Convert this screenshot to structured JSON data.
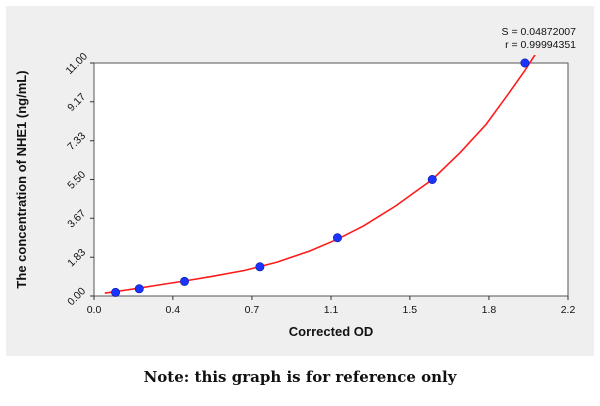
{
  "stats": {
    "s_text": "S = 0.04872007",
    "r_text": "r = 0.99994351"
  },
  "note": "Note: this graph is for reference only",
  "colors": {
    "panel_background": "#efefef",
    "plot_background": "#ffffff",
    "curve": "#ff1a1a",
    "points": "#1a33ff"
  },
  "chart_data": {
    "type": "scatter",
    "title": "",
    "xlabel": "Corrected OD",
    "ylabel": "The concentration of NHE1 (ng/mL)",
    "xlim": [
      0.0,
      2.2
    ],
    "ylim": [
      0.0,
      11.0
    ],
    "x_ticks": [
      "0.0",
      "0.4",
      "0.7",
      "1.1",
      "1.5",
      "1.8",
      "2.2"
    ],
    "x_tick_values": [
      0.0,
      0.366,
      0.733,
      1.1,
      1.466,
      1.833,
      2.2
    ],
    "y_ticks": [
      "0.00",
      "1.83",
      "3.67",
      "5.50",
      "7.33",
      "9.17",
      "11.00"
    ],
    "y_tick_values": [
      0.0,
      1.83,
      3.67,
      5.5,
      7.33,
      9.17,
      11.0
    ],
    "grid": false,
    "legend": "none",
    "points": [
      {
        "x": 0.1,
        "y": 0.17
      },
      {
        "x": 0.21,
        "y": 0.34
      },
      {
        "x": 0.42,
        "y": 0.69
      },
      {
        "x": 0.77,
        "y": 1.38
      },
      {
        "x": 1.13,
        "y": 2.75
      },
      {
        "x": 1.57,
        "y": 5.5
      },
      {
        "x": 2.0,
        "y": 11.0
      }
    ],
    "curve": {
      "type": "fit",
      "points": [
        [
          0.05,
          0.13
        ],
        [
          0.1,
          0.21
        ],
        [
          0.2,
          0.36
        ],
        [
          0.3,
          0.52
        ],
        [
          0.42,
          0.71
        ],
        [
          0.55,
          0.93
        ],
        [
          0.7,
          1.21
        ],
        [
          0.85,
          1.6
        ],
        [
          1.0,
          2.12
        ],
        [
          1.13,
          2.68
        ],
        [
          1.25,
          3.3
        ],
        [
          1.4,
          4.25
        ],
        [
          1.57,
          5.5
        ],
        [
          1.7,
          6.78
        ],
        [
          1.82,
          8.1
        ],
        [
          1.92,
          9.5
        ],
        [
          2.0,
          10.65
        ],
        [
          2.07,
          11.75
        ]
      ]
    }
  }
}
